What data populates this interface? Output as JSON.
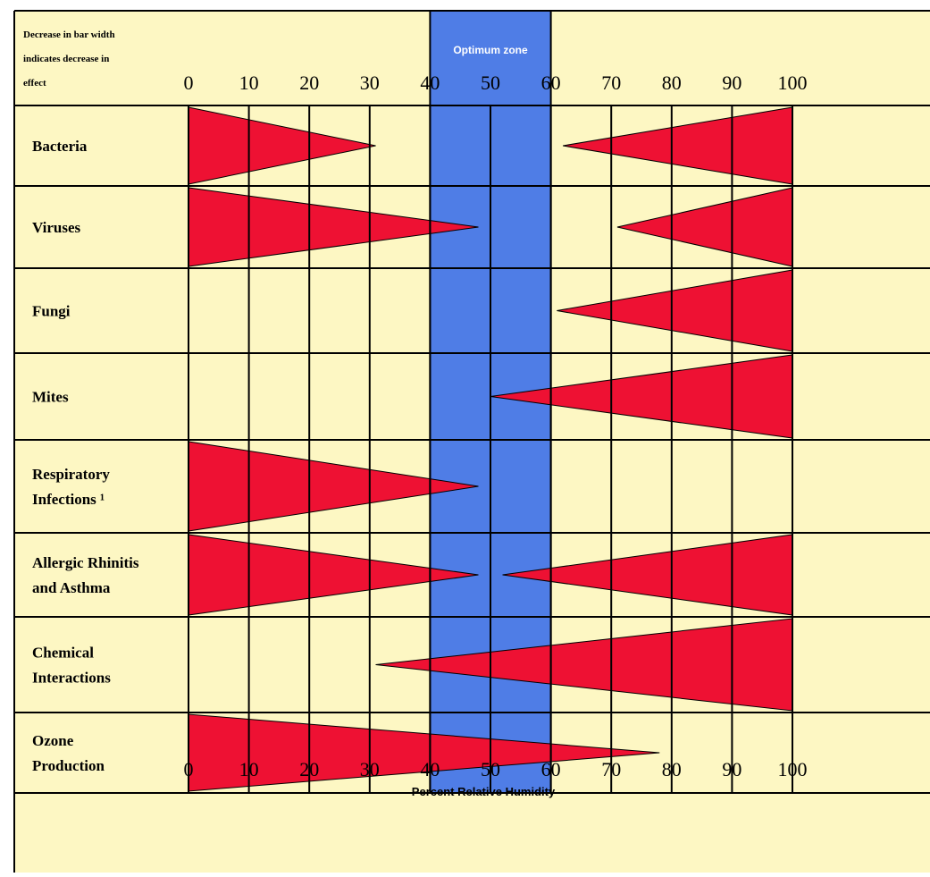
{
  "chart_data": {
    "type": "bar",
    "note_lines": [
      "Decrease in bar width",
      "indicates decrease in",
      "effect"
    ],
    "zone_label": "Optimum zone",
    "optimum_zone": [
      40,
      60
    ],
    "xlabel": "Percent Relative Humidity",
    "xlim": [
      0,
      100
    ],
    "x_ticks": [
      "0",
      "10",
      "20",
      "30",
      "40",
      "50",
      "60",
      "70",
      "80",
      "90",
      "100"
    ],
    "rows": [
      {
        "label_lines": [
          "Bacteria"
        ],
        "wedges": [
          {
            "wide_end": 0,
            "narrow_end": 31
          },
          {
            "wide_end": 100,
            "narrow_end": 62
          }
        ]
      },
      {
        "label_lines": [
          "Viruses"
        ],
        "wedges": [
          {
            "wide_end": 0,
            "narrow_end": 48
          },
          {
            "wide_end": 100,
            "narrow_end": 71
          }
        ]
      },
      {
        "label_lines": [
          "Fungi"
        ],
        "wedges": [
          {
            "wide_end": 100,
            "narrow_end": 61
          }
        ]
      },
      {
        "label_lines": [
          "Mites"
        ],
        "wedges": [
          {
            "wide_end": 100,
            "narrow_end": 50
          }
        ]
      },
      {
        "label_lines": [
          "Respiratory",
          "Infections ¹"
        ],
        "wedges": [
          {
            "wide_end": 0,
            "narrow_end": 48
          }
        ]
      },
      {
        "label_lines": [
          "Allergic Rhinitis",
          "and Asthma"
        ],
        "wedges": [
          {
            "wide_end": 0,
            "narrow_end": 48
          },
          {
            "wide_end": 100,
            "narrow_end": 52
          }
        ]
      },
      {
        "label_lines": [
          "Chemical",
          "Interactions"
        ],
        "wedges": [
          {
            "wide_end": 100,
            "narrow_end": 31
          }
        ]
      },
      {
        "label_lines": [
          "Ozone",
          "Production"
        ],
        "wedges": [
          {
            "wide_end": 0,
            "narrow_end": 78
          }
        ]
      }
    ],
    "colors": {
      "background": "#fdf7c3",
      "wedge": "#ee1133",
      "optimum_zone": "#4f7de6",
      "grid": "#000000"
    }
  }
}
